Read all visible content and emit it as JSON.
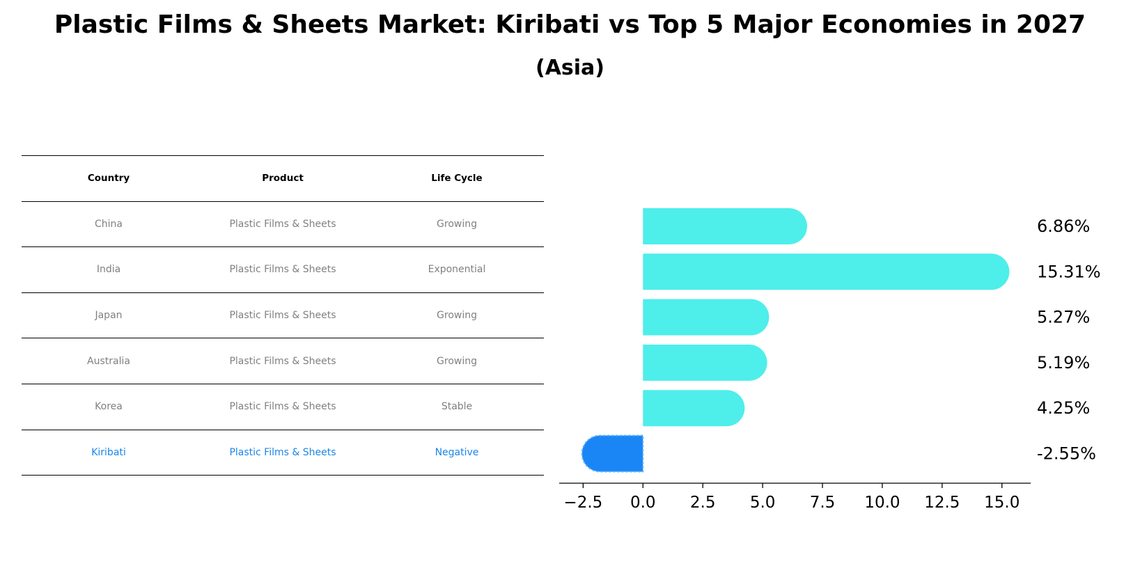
{
  "title": "Plastic Films & Sheets Market: Kiribati vs Top 5 Major Economies in 2027",
  "subtitle": "(Asia)",
  "table": {
    "headers": [
      "Country",
      "Product",
      "Life Cycle"
    ],
    "rows": [
      {
        "country": "China",
        "product": "Plastic Films & Sheets",
        "life_cycle": "Growing"
      },
      {
        "country": "India",
        "product": "Plastic Films & Sheets",
        "life_cycle": "Exponential"
      },
      {
        "country": "Japan",
        "product": "Plastic Films & Sheets",
        "life_cycle": "Growing"
      },
      {
        "country": "Australia",
        "product": "Plastic Films & Sheets",
        "life_cycle": "Growing"
      },
      {
        "country": "Korea",
        "product": "Plastic Films & Sheets",
        "life_cycle": "Stable"
      },
      {
        "country": "Kiribati",
        "product": "Plastic Films & Sheets",
        "life_cycle": "Negative"
      }
    ]
  },
  "colors": {
    "positive_bar": "#4eeeea",
    "highlight_bar": "#1a86f5",
    "highlight_text": "#1a86e8",
    "table_text": "#808080"
  },
  "chart_data": {
    "type": "bar",
    "orientation": "horizontal",
    "categories": [
      "China",
      "India",
      "Japan",
      "Australia",
      "Korea",
      "Kiribati"
    ],
    "values": [
      6.86,
      15.31,
      5.27,
      5.19,
      4.25,
      -2.55
    ],
    "data_labels": [
      "6.86%",
      "15.31%",
      "5.27%",
      "5.19%",
      "4.25%",
      "-2.55%"
    ],
    "xticks": [
      -2.5,
      0.0,
      2.5,
      5.0,
      7.5,
      10.0,
      12.5,
      15.0
    ],
    "xtick_labels": [
      "−2.5",
      "0.0",
      "2.5",
      "5.0",
      "7.5",
      "10.0",
      "12.5",
      "15.0"
    ],
    "xlim": [
      -3.5,
      16.2
    ],
    "highlight_category": "Kiribati",
    "grid": false,
    "xlabel": "",
    "ylabel": ""
  }
}
